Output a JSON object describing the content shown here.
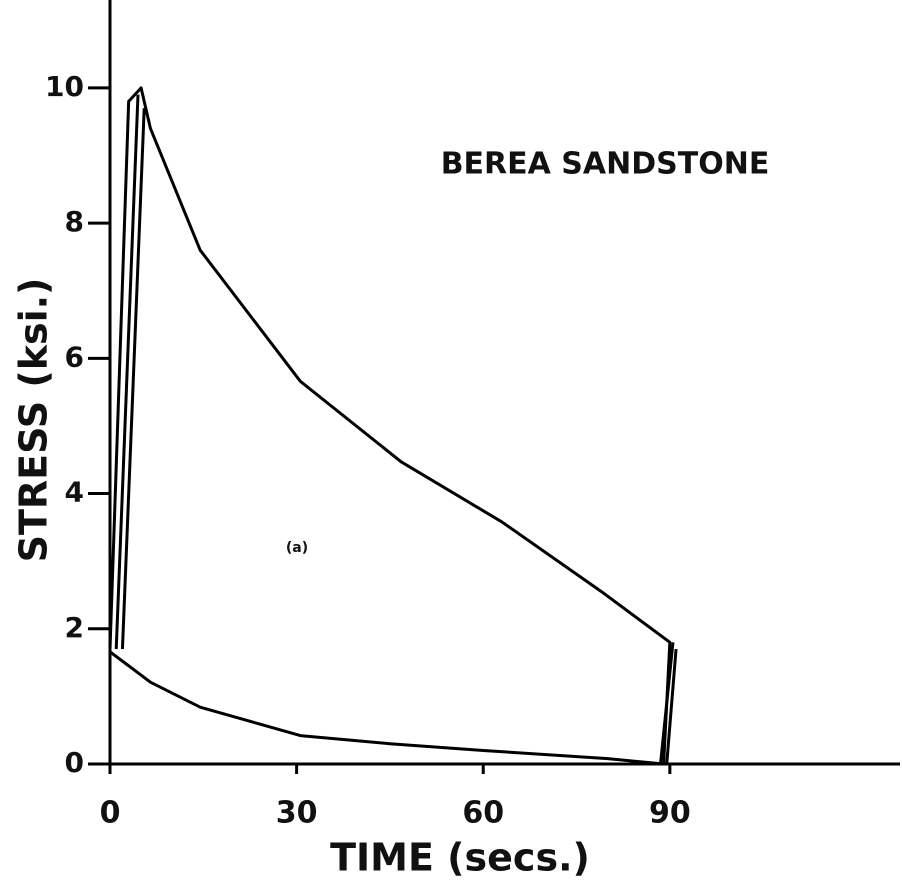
{
  "chart_data": {
    "type": "line",
    "title": "BEREA SANDSTONE",
    "annotation": "(a)",
    "xlabel": "TIME (secs.)",
    "ylabel": "STRESS (ksi.)",
    "xlim": [
      0,
      127
    ],
    "ylim": [
      0,
      11.3
    ],
    "xticks": [
      0,
      30,
      60,
      90
    ],
    "yticks": [
      0,
      2,
      4,
      6,
      8,
      10
    ],
    "grid": false,
    "series": [
      {
        "color": "#000000",
        "x": [
          0,
          3,
          5,
          6.5,
          14.5,
          30.6,
          46.8,
          63,
          79,
          90,
          89,
          80,
          60,
          45,
          30.6,
          14.5,
          6.5,
          0
        ],
        "values": [
          1.7,
          9.8,
          10,
          9.4,
          7.6,
          5.66,
          4.47,
          3.58,
          2.55,
          1.8,
          0,
          0.08,
          0.2,
          0.3,
          0.42,
          0.84,
          1.21,
          1.66
        ]
      },
      {
        "color": "#000000",
        "x": [
          1,
          4.5
        ],
        "values": [
          1.7,
          9.9
        ]
      },
      {
        "color": "#000000",
        "x": [
          2,
          5.5
        ],
        "values": [
          1.7,
          9.7
        ]
      },
      {
        "color": "#000000",
        "x": [
          91,
          89.5
        ],
        "values": [
          1.7,
          0
        ]
      },
      {
        "color": "#000000",
        "x": [
          90.5,
          88.5
        ],
        "values": [
          1.8,
          0
        ]
      }
    ]
  }
}
